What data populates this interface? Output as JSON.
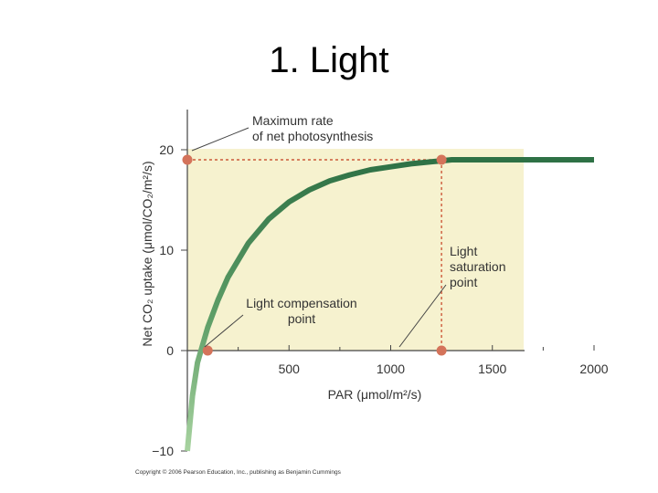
{
  "title": "1.  Light",
  "copyright": "Copyright © 2006 Pearson Education, Inc., publishing as Benjamin Cummings",
  "chart_data": {
    "type": "line",
    "xlabel": "PAR (μmol/m²/s)",
    "ylabel": "Net CO₂ uptake (μmol/CO₂/m²/s)",
    "xlim": [
      -50,
      2000
    ],
    "ylim": [
      -10,
      24
    ],
    "x_ticks": [
      "500",
      "1000",
      "1500",
      "2000"
    ],
    "x_tick_values": [
      500,
      1000,
      1500,
      2000
    ],
    "y_ticks": [
      "20",
      "10",
      "0",
      "−10"
    ],
    "y_tick_values": [
      20,
      10,
      0,
      -10
    ],
    "series": [
      {
        "x": [
          0,
          25,
          50,
          100,
          150,
          200,
          300,
          400,
          500,
          600,
          700,
          800,
          900,
          1000,
          1100,
          1200,
          1250,
          1300,
          1400,
          1500,
          1750,
          2000
        ],
        "y": [
          -10,
          -4.5,
          -1.2,
          2.3,
          5.0,
          7.3,
          10.7,
          13.1,
          14.8,
          16.0,
          16.9,
          17.5,
          18.0,
          18.3,
          18.6,
          18.8,
          18.9,
          19.0,
          19.0,
          19.0,
          19.0,
          19.0
        ]
      }
    ],
    "points": [
      {
        "x": 0,
        "y": 19
      },
      {
        "x": 1250,
        "y": 19
      },
      {
        "x": 100,
        "y": 0
      },
      {
        "x": 1250,
        "y": 0
      }
    ],
    "annotations": [
      {
        "lines": [
          "Maximum rate",
          "of net photosynthesis"
        ]
      },
      {
        "lines": [
          "Light compensation",
          "point"
        ]
      },
      {
        "lines": [
          "Light",
          "saturation",
          "point"
        ]
      }
    ],
    "colors": {
      "plot_background": "#f6f2cf",
      "curve_dark": "#2e7145",
      "curve_light": "#a8d3a0",
      "marker": "#d4735a",
      "dashed_line": "#cc5a3a",
      "axis": "#444444"
    },
    "grid": false
  }
}
